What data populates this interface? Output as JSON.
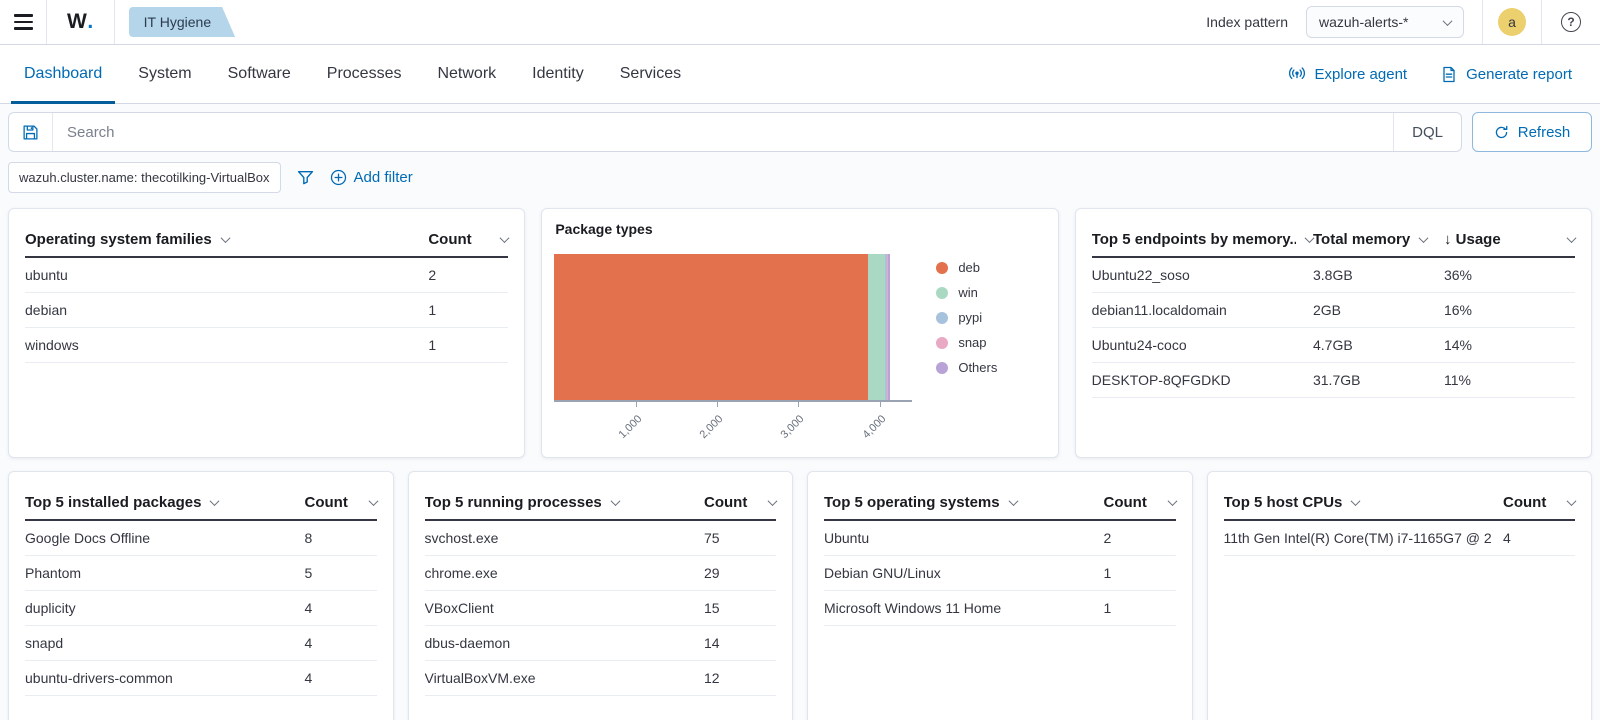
{
  "topbar": {
    "logo_w": "W",
    "logo_dot": ".",
    "breadcrumb": "IT Hygiene",
    "index_pattern_label": "Index pattern",
    "index_pattern_value": "wazuh-alerts-*",
    "avatar_initial": "a",
    "help_glyph": "?"
  },
  "nav": {
    "tabs": [
      "Dashboard",
      "System",
      "Software",
      "Processes",
      "Network",
      "Identity",
      "Services"
    ],
    "active_tab": "Dashboard",
    "explore_agent": "Explore agent",
    "generate_report": "Generate report"
  },
  "search": {
    "placeholder": "Search",
    "language": "DQL",
    "refresh_label": "Refresh"
  },
  "filters": {
    "pill": "wazuh.cluster.name: thecotilking-VirtualBox",
    "add_filter_label": "Add filter"
  },
  "tables": {
    "os_families": {
      "title": "Operating system families",
      "count_label": "Count",
      "rows": [
        {
          "name": "ubuntu",
          "count": 2
        },
        {
          "name": "debian",
          "count": 1
        },
        {
          "name": "windows",
          "count": 1
        }
      ]
    },
    "endpoints_memory": {
      "title": "Top 5 endpoints by memory...",
      "memory_label": "Total memory",
      "usage_label": "Usage",
      "sort_arrow": "↓",
      "rows": [
        {
          "name": "Ubuntu22_soso",
          "memory": "3.8GB",
          "usage": "36%"
        },
        {
          "name": "debian11.localdomain",
          "memory": "2GB",
          "usage": "16%"
        },
        {
          "name": "Ubuntu24-coco",
          "memory": "4.7GB",
          "usage": "14%"
        },
        {
          "name": "DESKTOP-8QFGDKD",
          "memory": "31.7GB",
          "usage": "11%"
        }
      ]
    },
    "installed_packages": {
      "title": "Top 5 installed packages",
      "count_label": "Count",
      "rows": [
        {
          "name": "Google Docs Offline",
          "count": 8
        },
        {
          "name": "Phantom",
          "count": 5
        },
        {
          "name": "duplicity",
          "count": 4
        },
        {
          "name": "snapd",
          "count": 4
        },
        {
          "name": "ubuntu-drivers-common",
          "count": 4
        }
      ]
    },
    "running_processes": {
      "title": "Top 5 running processes",
      "count_label": "Count",
      "rows": [
        {
          "name": "svchost.exe",
          "count": 75
        },
        {
          "name": "chrome.exe",
          "count": 29
        },
        {
          "name": "VBoxClient",
          "count": 15
        },
        {
          "name": "dbus-daemon",
          "count": 14
        },
        {
          "name": "VirtualBoxVM.exe",
          "count": 12
        }
      ]
    },
    "operating_systems": {
      "title": "Top 5 operating systems",
      "count_label": "Count",
      "rows": [
        {
          "name": "Ubuntu",
          "count": 2
        },
        {
          "name": "Debian GNU/Linux",
          "count": 1
        },
        {
          "name": "Microsoft Windows 11 Home",
          "count": 1
        }
      ]
    },
    "host_cpus": {
      "title": "Top 5 host CPUs",
      "count_label": "Count",
      "rows": [
        {
          "name": "11th Gen Intel(R) Core(TM) i7-1165G7 @ 2",
          "count": 4
        }
      ]
    }
  },
  "chart_data": {
    "type": "bar",
    "orientation": "horizontal",
    "stacked": true,
    "title": "Package types",
    "series": [
      {
        "name": "deb",
        "value": 3850,
        "color": "#e4714e"
      },
      {
        "name": "win",
        "value": 210,
        "color": "#a9d9c2"
      },
      {
        "name": "pypi",
        "value": 25,
        "color": "#a7c2dd"
      },
      {
        "name": "snap",
        "value": 20,
        "color": "#e9a8c3"
      },
      {
        "name": "Others",
        "value": 15,
        "color": "#b8a2d6"
      }
    ],
    "x_ticks": [
      1000,
      2000,
      3000,
      4000
    ],
    "xlim": [
      0,
      4400
    ],
    "legend_position": "right",
    "grid": false
  },
  "colors": {
    "accent_blue": "#006bb4",
    "active_tab_underline": "#015c99",
    "badge_bg": "#b5d5ea",
    "avatar_bg": "#ecd06d",
    "card_border": "#e0e5ee",
    "header_rule": "#343741",
    "axis": "#99a3b3"
  }
}
